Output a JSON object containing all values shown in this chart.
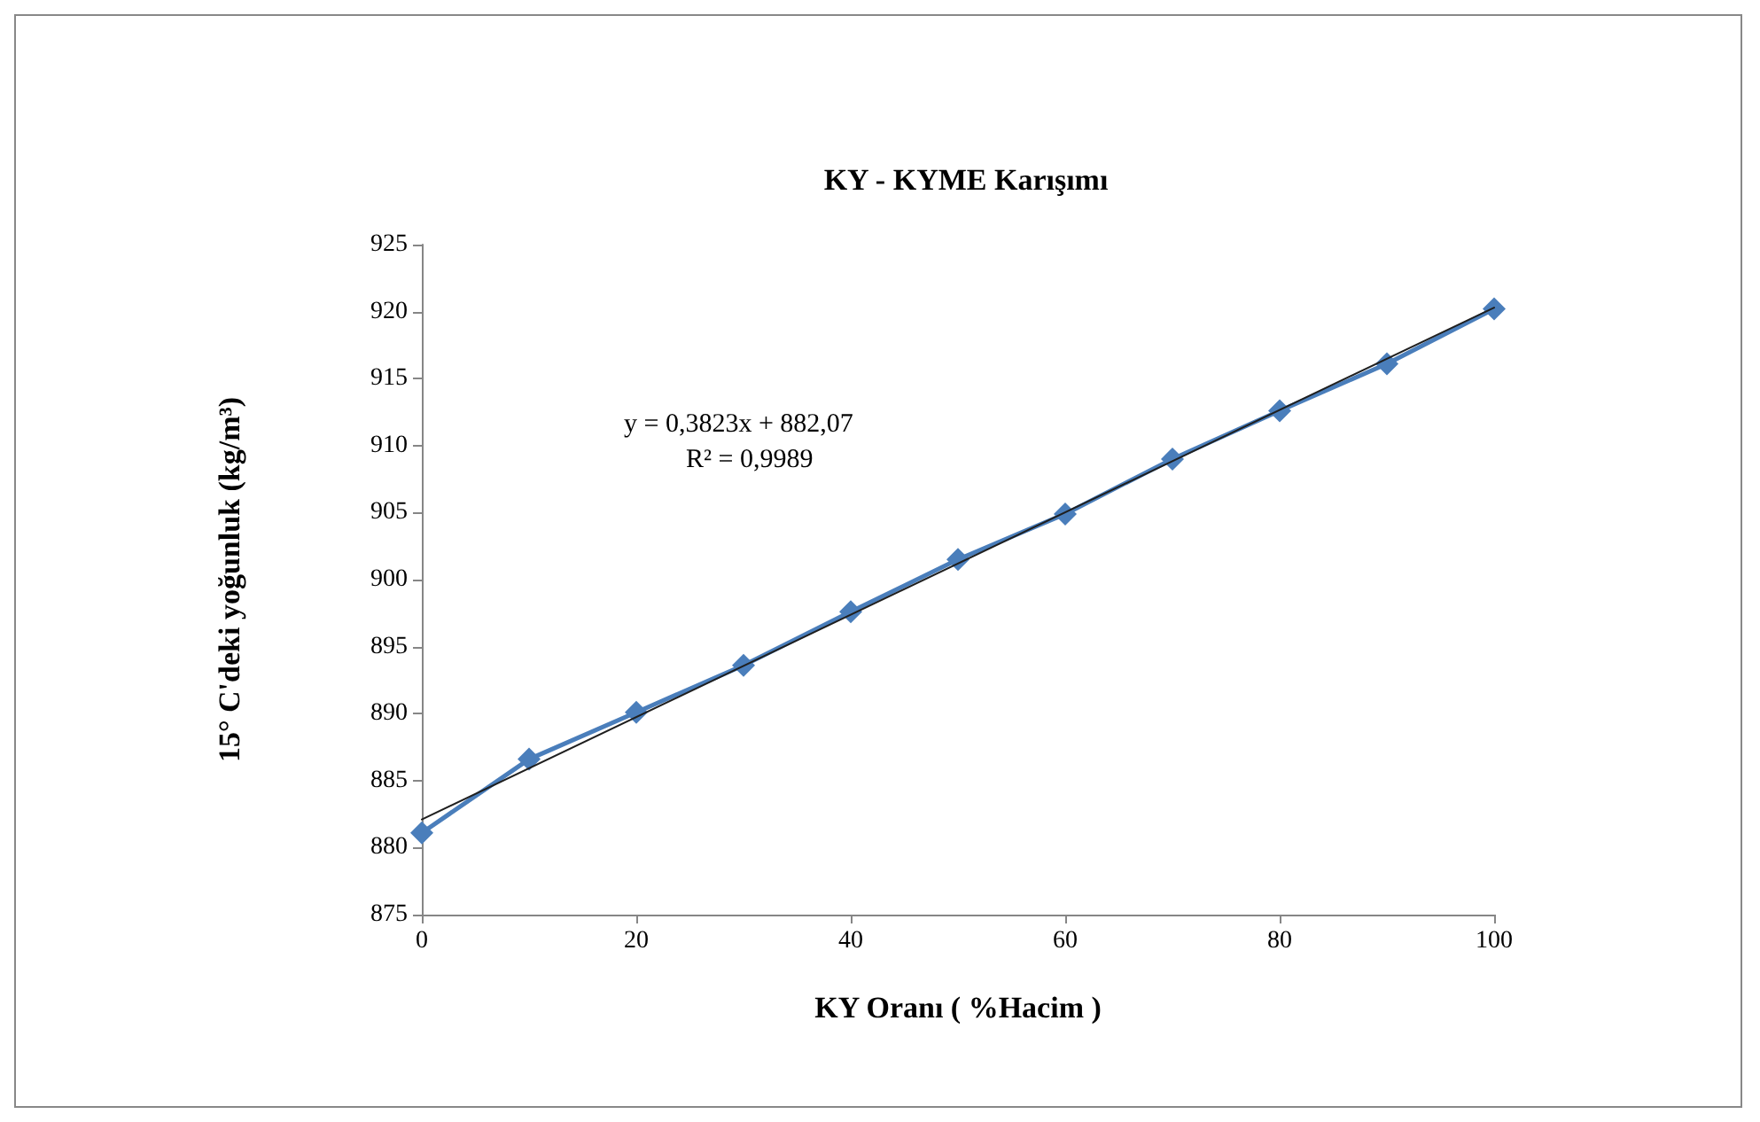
{
  "chart_data": {
    "type": "line",
    "title": "KY - KYME Karışımı",
    "xlabel": "KY Oranı ( %Hacim )",
    "ylabel": "15° C'deki yoğunluk (kg/m³)",
    "annotations": [
      "y = 0,3823x + 882,07",
      "R² = 0,9989"
    ],
    "x": [
      0,
      10,
      20,
      30,
      40,
      50,
      60,
      70,
      80,
      90,
      100
    ],
    "series": [
      {
        "color": "#4a7ebb",
        "marker": "diamond",
        "values": [
          881.1,
          886.6,
          890.1,
          893.6,
          897.6,
          901.5,
          904.9,
          909.0,
          912.6,
          916.1,
          920.2
        ]
      },
      {
        "type": "line",
        "color": "#1f1f1f",
        "marker": "none",
        "x": [
          0,
          100
        ],
        "values": [
          882.1,
          920.3
        ]
      }
    ],
    "xlim": [
      0,
      100
    ],
    "xticks": [
      0,
      20,
      40,
      60,
      80,
      100
    ],
    "ylim": [
      875,
      925
    ],
    "yticks": [
      875,
      880,
      885,
      890,
      895,
      900,
      905,
      910,
      915,
      920,
      925
    ],
    "grid": false
  }
}
